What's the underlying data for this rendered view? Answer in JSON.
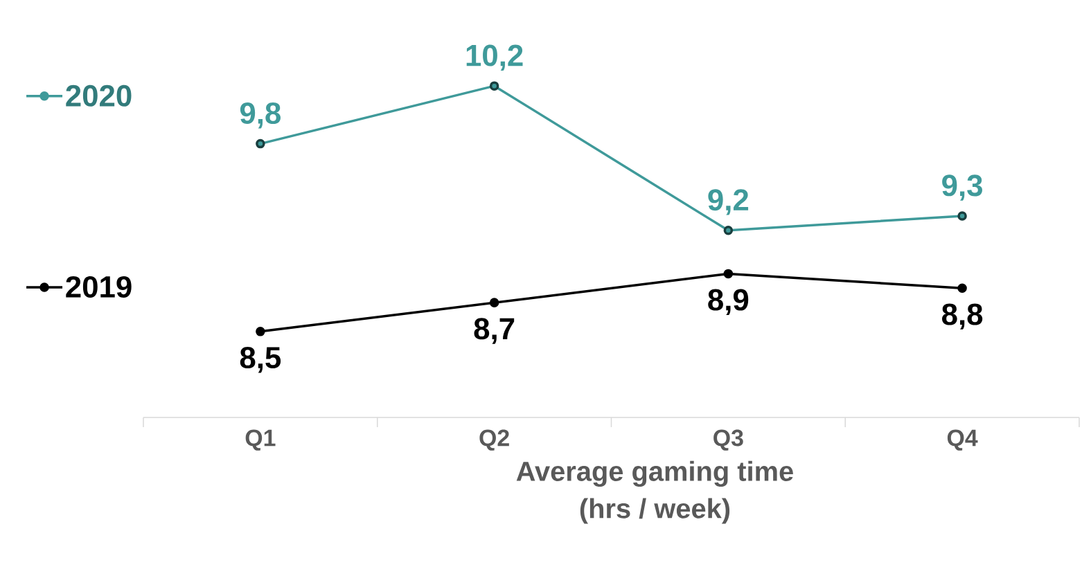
{
  "chart_data": {
    "type": "line",
    "xlabel": "Average gaming time\n(hrs / week)",
    "categories": [
      "Q1",
      "Q2",
      "Q3",
      "Q4"
    ],
    "series": [
      {
        "name": "2020",
        "color": "#3f9a9a",
        "values": [
          9.8,
          10.2,
          9.2,
          9.3
        ],
        "value_labels": [
          "9,8",
          "10,2",
          "9,2",
          "9,3"
        ]
      },
      {
        "name": "2019",
        "color": "#000000",
        "values": [
          8.5,
          8.7,
          8.9,
          8.8
        ],
        "value_labels": [
          "8,5",
          "8,7",
          "8,9",
          "8,8"
        ]
      }
    ],
    "tick_labels": "x",
    "legend": "left",
    "marker": "circle",
    "line_style": "solid",
    "grid": false
  }
}
